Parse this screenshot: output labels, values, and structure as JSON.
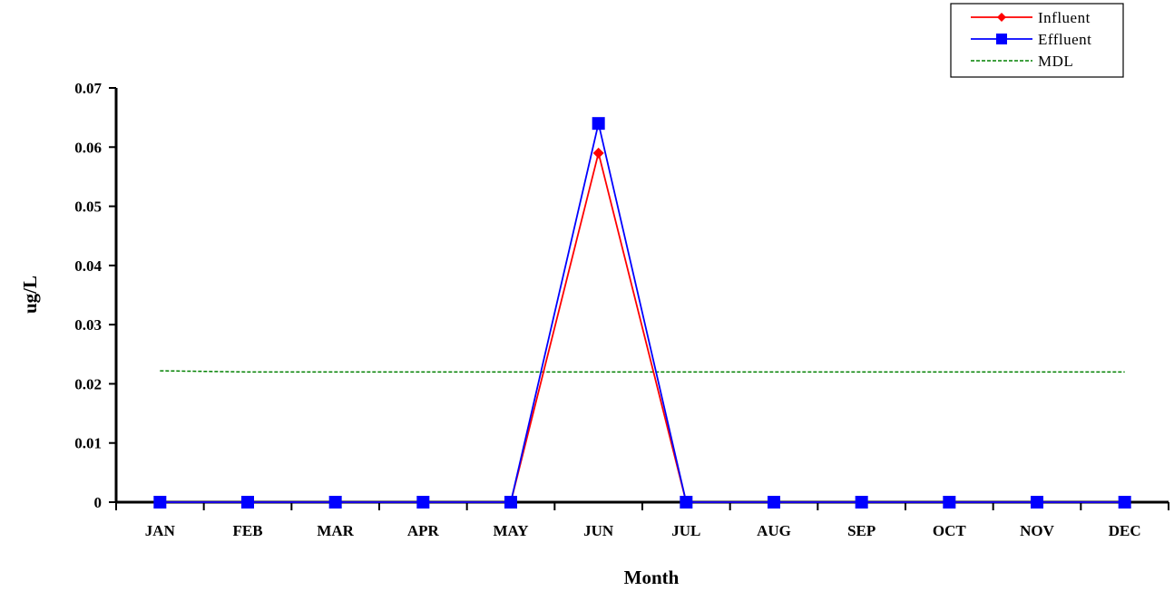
{
  "chart_data": {
    "type": "line",
    "title": "",
    "xlabel": "Month",
    "ylabel": "ug/L",
    "categories": [
      "JAN",
      "FEB",
      "MAR",
      "APR",
      "MAY",
      "JUN",
      "JUL",
      "AUG",
      "SEP",
      "OCT",
      "NOV",
      "DEC"
    ],
    "ylim": [
      0,
      0.07
    ],
    "yticks": [
      0,
      0.01,
      0.02,
      0.03,
      0.04,
      0.05,
      0.06,
      0.07
    ],
    "ytick_labels": [
      "0",
      "0.01",
      "0.02",
      "0.03",
      "0.04",
      "0.05",
      "0.06",
      "0.07"
    ],
    "grid": false,
    "legend_position": "top-right",
    "series": [
      {
        "name": "Influent",
        "color": "#ff0000",
        "marker": "diamond",
        "line_style": "solid",
        "values": [
          0,
          0,
          0,
          0,
          0,
          0.059,
          0,
          0,
          0,
          0,
          0,
          0
        ]
      },
      {
        "name": "Effluent",
        "color": "#0000ff",
        "marker": "square",
        "line_style": "solid",
        "values": [
          0,
          0,
          0,
          0,
          0,
          0.064,
          0,
          0,
          0,
          0,
          0,
          0
        ]
      },
      {
        "name": "MDL",
        "color": "#008000",
        "marker": "none",
        "line_style": "dashed",
        "values": [
          0.0222,
          0.022,
          0.022,
          0.022,
          0.022,
          0.022,
          0.022,
          0.022,
          0.022,
          0.022,
          0.022,
          0.022
        ]
      }
    ]
  }
}
